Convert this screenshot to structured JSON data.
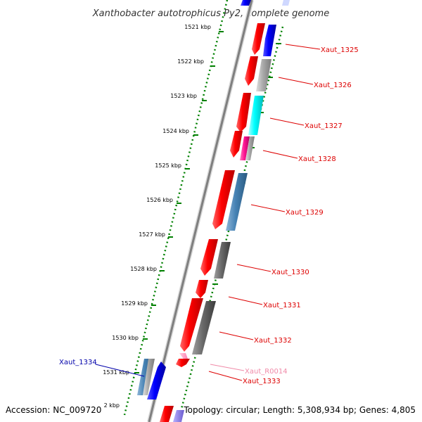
{
  "title": "Xanthobacter autotrophicus Py2, complete genome",
  "footer": {
    "accession": "Accession: NC_009720",
    "tick_fragment": "2 kbp",
    "info": "Topology: circular; Length: 5,308,934 bp; Genes: 4,805"
  },
  "ticks": [
    "1521 kbp",
    "1522 kbp",
    "1523 kbp",
    "1524 kbp",
    "1525 kbp",
    "1526 kbp",
    "1527 kbp",
    "1528 kbp",
    "1529 kbp",
    "1530 kbp",
    "1531 kbp"
  ],
  "genes": [
    {
      "label": "Xaut_1325",
      "color": "#dd0000"
    },
    {
      "label": "Xaut_1326",
      "color": "#dd0000"
    },
    {
      "label": "Xaut_1327",
      "color": "#dd0000"
    },
    {
      "label": "Xaut_1328",
      "color": "#dd0000"
    },
    {
      "label": "Xaut_1329",
      "color": "#dd0000"
    },
    {
      "label": "Xaut_1330",
      "color": "#dd0000"
    },
    {
      "label": "Xaut_1331",
      "color": "#dd0000"
    },
    {
      "label": "Xaut_1332",
      "color": "#dd0000"
    },
    {
      "label": "Xaut_R0014",
      "color": "#f08aa8"
    },
    {
      "label": "Xaut_1333",
      "color": "#dd0000"
    },
    {
      "label": "Xaut_1334",
      "color": "#0000aa"
    }
  ],
  "colors": {
    "cds": "#ff0000",
    "blue_feature": "#0000ff",
    "steelblue_feature": "#4682b4",
    "gray_feature": "#a9a9a9",
    "dark_gray_feature": "#696969",
    "cyan_feature": "#00ffff",
    "magenta_feature": "#ff1493",
    "backbone": "#808080",
    "tick_marks": "#008000"
  }
}
